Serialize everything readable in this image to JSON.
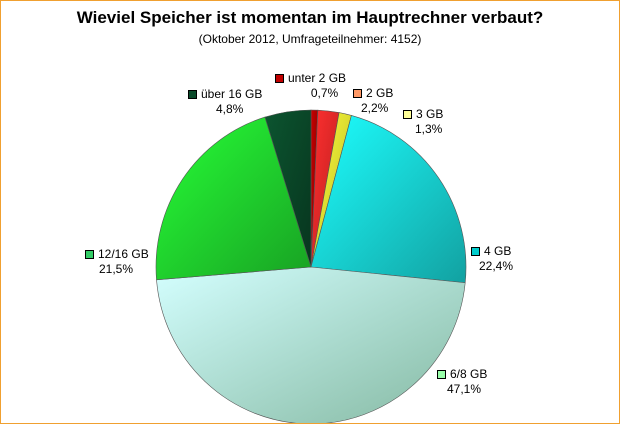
{
  "chart_data": {
    "type": "pie",
    "title": "Wieviel Speicher ist momentan im Hauptrechner verbaut?",
    "subtitle": "(Oktober 2012, Umfrageteilnehmer: 4152)",
    "slices": [
      {
        "label": "unter 2 GB",
        "value": 0.7,
        "value_label": "0,7%",
        "color": "#b00000"
      },
      {
        "label": "2 GB",
        "value": 2.2,
        "value_label": "2,2%",
        "color": "#ff2a2a"
      },
      {
        "label": "3 GB",
        "value": 1.3,
        "value_label": "1,3%",
        "color": "#ffff33"
      },
      {
        "label": "4 GB",
        "value": 22.4,
        "value_label": "22,4%",
        "color": "#19e0e0"
      },
      {
        "label": "6/8 GB",
        "value": 47.1,
        "value_label": "47,1%",
        "color": "#b8ffe0"
      },
      {
        "label": "12/16 GB",
        "value": 21.5,
        "value_label": "21,5%",
        "color": "#22e030"
      },
      {
        "label": "über 16 GB",
        "value": 4.8,
        "value_label": "4,8%",
        "color": "#0a4a2a"
      }
    ],
    "legend_swatch_colors": [
      "#c00000",
      "#ff9966",
      "#ffff99",
      "#00cccc",
      "#99ffaa",
      "#33cc66",
      "#0a4a2a"
    ]
  }
}
